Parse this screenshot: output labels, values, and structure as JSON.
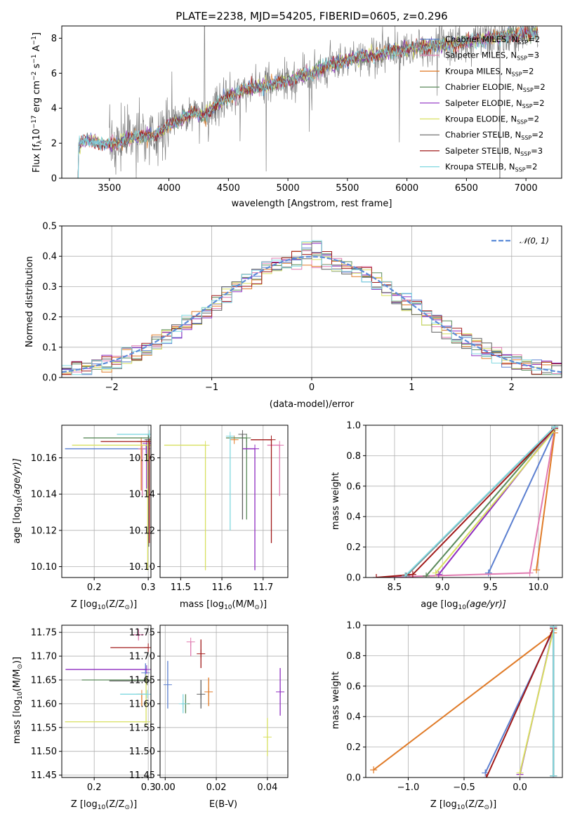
{
  "colors": [
    "#5b7fd0",
    "#e07ab0",
    "#e07b28",
    "#5a8a5a",
    "#8e2cc0",
    "#d8e060",
    "#606060",
    "#a01818",
    "#80d8e0"
  ],
  "chart_data": [
    {
      "id": "spectrum",
      "type": "line",
      "title": "PLATE=2238, MJD=54205, FIBERID=0605, z=0.296",
      "xlabel": "wavelength [Angstrom, rest frame]",
      "ylabel_main": "Flux [f",
      "ylabel_sub": "λ",
      "ylabel_rest": "10",
      "ylabel_sup1": "−17",
      "ylabel_mid": " erg cm",
      "ylabel_sup2": "−2",
      "ylabel_mid2": " s",
      "ylabel_sup3": "−1",
      "ylabel_mid3": " A",
      "ylabel_sup4": "−1",
      "ylabel_end": "]",
      "xlim": [
        3100,
        7300
      ],
      "ylim": [
        0,
        8.7
      ],
      "xticks": [
        3500,
        4000,
        4500,
        5000,
        5500,
        6000,
        6500,
        7000
      ],
      "yticks": [
        0,
        2,
        4,
        6,
        8
      ],
      "observed_color": "#808080",
      "model_x": [
        3200,
        3250,
        3300,
        3400,
        3500,
        3600,
        3700,
        3800,
        3900,
        4000,
        4100,
        4200,
        4300,
        4400,
        4500,
        4600,
        4700,
        4800,
        4900,
        5000,
        5100,
        5200,
        5300,
        5400,
        5500,
        5600,
        5700,
        5800,
        5900,
        6000,
        6100,
        6200,
        6300,
        6400,
        6500,
        6600,
        6700,
        6800,
        6900,
        7000,
        7100
      ],
      "model_y": [
        0.0,
        2.0,
        2.2,
        2.0,
        1.9,
        2.1,
        2.3,
        2.4,
        2.5,
        3.0,
        3.4,
        3.7,
        3.6,
        4.2,
        4.6,
        4.9,
        5.2,
        5.3,
        5.4,
        5.6,
        5.8,
        6.0,
        6.3,
        6.6,
        6.7,
        6.9,
        7.0,
        7.1,
        7.3,
        7.4,
        7.5,
        7.6,
        7.6,
        7.7,
        7.8,
        7.9,
        8.0,
        8.1,
        8.2,
        8.2,
        8.3
      ],
      "legend": [
        {
          "pre": "Chabrier MILES, N",
          "sub": "SSP",
          "post": "=2"
        },
        {
          "pre": "Salpeter MILES, N",
          "sub": "SSP",
          "post": "=3"
        },
        {
          "pre": "Kroupa MILES, N",
          "sub": "SSP",
          "post": "=2"
        },
        {
          "pre": "Chabrier ELODIE, N",
          "sub": "SSP",
          "post": "=2"
        },
        {
          "pre": "Salpeter ELODIE, N",
          "sub": "SSP",
          "post": "=2"
        },
        {
          "pre": "Kroupa ELODIE, N",
          "sub": "SSP",
          "post": "=2"
        },
        {
          "pre": "Chabrier STELIB, N",
          "sub": "SSP",
          "post": "=2"
        },
        {
          "pre": "Salpeter STELIB, N",
          "sub": "SSP",
          "post": "=3"
        },
        {
          "pre": "Kroupa STELIB, N",
          "sub": "SSP",
          "post": "=2"
        }
      ]
    },
    {
      "id": "residuals",
      "type": "histogram",
      "xlabel": "(data-model)/error",
      "ylabel": "Normed distribution",
      "xlim": [
        -2.5,
        2.5
      ],
      "ylim": [
        0,
        0.5
      ],
      "xticks": [
        -2,
        -1,
        0,
        1,
        2
      ],
      "yticks": [
        0.0,
        0.1,
        0.2,
        0.3,
        0.4,
        0.5
      ],
      "legend": "𝒩(0, 1)",
      "gaussian_color": "#5b8bd8",
      "bin_width": 0.1
    },
    {
      "id": "age-vs-Z",
      "type": "scatter",
      "xlabel": "Z [log",
      "xlabel_sub": "10",
      "xlabel_post": "(Z/Z",
      "xlabel_sub2": "⊙",
      "xlabel_end": ")]",
      "ylabel": "age  [log",
      "ylabel_sub": "10",
      "ylabel_post": "(age/yr)]",
      "xlim": [
        0.14,
        0.305
      ],
      "ylim": [
        10.094,
        10.178
      ],
      "xticks": [
        0.2,
        0.3
      ],
      "yticks": [
        10.1,
        10.12,
        10.14,
        10.16
      ],
      "points": [
        {
          "x": 0.296,
          "y": 10.165,
          "xerr": [
            0.15,
            0.0
          ],
          "yerr": [
            0.0,
            0.0
          ]
        },
        {
          "x": 0.289,
          "y": 10.165,
          "xerr": [
            0.0,
            0.0
          ],
          "yerr": [
            0.026,
            0.0
          ]
        },
        {
          "x": 0.287,
          "y": 10.169,
          "xerr": [
            0.0,
            0.0
          ],
          "yerr": [
            0.027,
            0.0
          ]
        },
        {
          "x": 0.3,
          "y": 10.171,
          "xerr": [
            0.12,
            0.0
          ],
          "yerr": [
            0.0,
            0.0
          ]
        },
        {
          "x": 0.297,
          "y": 10.168,
          "xerr": [
            0.0,
            0.0
          ],
          "yerr": [
            0.025,
            0.0
          ]
        },
        {
          "x": 0.299,
          "y": 10.167,
          "xerr": [
            0.14,
            0.0
          ],
          "yerr": [
            0.069,
            0.0
          ]
        },
        {
          "x": 0.301,
          "y": 10.17,
          "xerr": [
            0.0,
            0.0
          ],
          "yerr": [
            0.059,
            0.0
          ]
        },
        {
          "x": 0.302,
          "y": 10.169,
          "xerr": [
            0.09,
            0.0
          ],
          "yerr": [
            0.056,
            0.0
          ]
        },
        {
          "x": 0.302,
          "y": 10.173,
          "xerr": [
            0.06,
            0.0
          ],
          "yerr": [
            0.0,
            0.0
          ]
        }
      ]
    },
    {
      "id": "age-vs-mass",
      "type": "scatter",
      "xlabel": "mass [log",
      "xlabel_sub": "10",
      "xlabel_post": "(M/M",
      "xlabel_sub2": "⊙",
      "xlabel_end": ")]",
      "xlim": [
        11.45,
        11.76
      ],
      "ylim": [
        10.094,
        10.178
      ],
      "xticks": [
        11.5,
        11.6,
        11.7
      ],
      "yticks": [
        10.1,
        10.12,
        10.14,
        10.16
      ],
      "points": [
        {
          "x": 11.66,
          "y": 10.165,
          "xerr": [
            0.0,
            0.0
          ],
          "yerr": [
            0.0,
            0.0
          ]
        },
        {
          "x": 11.74,
          "y": 10.167,
          "xerr": [
            0.03,
            0.0
          ],
          "yerr": [
            0.028,
            0.0
          ]
        },
        {
          "x": 11.63,
          "y": 10.17,
          "xerr": [
            0.0,
            0.0
          ],
          "yerr": [
            0.0,
            0.0
          ]
        },
        {
          "x": 11.66,
          "y": 10.171,
          "xerr": [
            0.05,
            0.0
          ],
          "yerr": [
            0.045,
            0.0
          ]
        },
        {
          "x": 11.68,
          "y": 10.165,
          "xerr": [
            0.03,
            0.0
          ],
          "yerr": [
            0.067,
            0.0
          ]
        },
        {
          "x": 11.56,
          "y": 10.167,
          "xerr": [
            0.1,
            0.0
          ],
          "yerr": [
            0.069,
            0.0
          ]
        },
        {
          "x": 11.65,
          "y": 10.173,
          "xerr": [
            0.0,
            0.0
          ],
          "yerr": [
            0.047,
            0.0
          ]
        },
        {
          "x": 11.72,
          "y": 10.17,
          "xerr": [
            0.05,
            0.0
          ],
          "yerr": [
            0.057,
            0.0
          ]
        },
        {
          "x": 11.62,
          "y": 10.172,
          "xerr": [
            0.0,
            0.0
          ],
          "yerr": [
            0.052,
            0.0
          ]
        }
      ]
    },
    {
      "id": "massweight-vs-age",
      "type": "line",
      "xlabel": "age  [log",
      "xlabel_sub": "10",
      "xlabel_post": "(age/yr)]",
      "ylabel": "mass weight",
      "xlim": [
        8.2,
        10.25
      ],
      "ylim": [
        0,
        1
      ],
      "xticks": [
        8.5,
        9.0,
        9.5,
        10.0
      ],
      "yticks": [
        0.0,
        0.2,
        0.4,
        0.6,
        0.8,
        1.0
      ],
      "series": [
        {
          "x": [
            9.48,
            10.17
          ],
          "y": [
            0.03,
            0.97
          ]
        },
        {
          "x": [
            8.31,
            9.91,
            10.17
          ],
          "y": [
            0.0,
            0.03,
            0.97
          ]
        },
        {
          "x": [
            9.98,
            10.17
          ],
          "y": [
            0.05,
            0.95
          ]
        },
        {
          "x": [
            8.83,
            10.17
          ],
          "y": [
            0.01,
            0.99
          ]
        },
        {
          "x": [
            8.96,
            10.17
          ],
          "y": [
            0.02,
            0.98
          ]
        },
        {
          "x": [
            8.93,
            10.17
          ],
          "y": [
            0.03,
            0.97
          ]
        },
        {
          "x": [
            8.62,
            10.17
          ],
          "y": [
            0.01,
            0.99
          ]
        },
        {
          "x": [
            8.31,
            8.69,
            10.17
          ],
          "y": [
            0.0,
            0.02,
            0.98
          ]
        },
        {
          "x": [
            8.61,
            10.17
          ],
          "y": [
            0.01,
            0.99
          ]
        }
      ]
    },
    {
      "id": "mass-vs-Z",
      "type": "scatter",
      "xlabel": "Z [log",
      "xlabel_sub": "10",
      "xlabel_post": "(Z/Z",
      "xlabel_sub2": "⊙",
      "xlabel_end": ")]",
      "ylabel": "mass [log",
      "ylabel_sub": "10",
      "ylabel_post": "(M/M",
      "ylabel_sub2": "⊙",
      "ylabel_end": ")]",
      "xlim": [
        0.14,
        0.305
      ],
      "ylim": [
        11.445,
        11.765
      ],
      "xticks": [
        0.2,
        0.3
      ],
      "yticks": [
        11.45,
        11.5,
        11.55,
        11.6,
        11.65,
        11.7,
        11.75
      ],
      "points": [
        {
          "x": 0.295,
          "y": 11.665,
          "xerr": [
            0.0,
            0.0
          ],
          "yerr": [
            0.02,
            0.02
          ]
        },
        {
          "x": 0.282,
          "y": 11.745,
          "xerr": [
            0.01,
            0.01
          ],
          "yerr": [
            0.012,
            0.012
          ]
        },
        {
          "x": 0.288,
          "y": 11.62,
          "xerr": [
            0.01,
            0.0
          ],
          "yerr": [
            0.025,
            0.0
          ]
        },
        {
          "x": 0.297,
          "y": 11.65,
          "xerr": [
            0.12,
            0.0
          ],
          "yerr": [
            0.0,
            0.0
          ]
        },
        {
          "x": 0.297,
          "y": 11.672,
          "xerr": [
            0.15,
            0.0
          ],
          "yerr": [
            0.0,
            0.0
          ]
        },
        {
          "x": 0.296,
          "y": 11.562,
          "xerr": [
            0.15,
            0.0
          ],
          "yerr": [
            0.0,
            0.1
          ]
        },
        {
          "x": 0.298,
          "y": 11.648,
          "xerr": [
            0.07,
            0.0
          ],
          "yerr": [
            0.0,
            0.0
          ]
        },
        {
          "x": 0.3,
          "y": 11.718,
          "xerr": [
            0.07,
            0.0
          ],
          "yerr": [
            0.0,
            0.0
          ]
        },
        {
          "x": 0.298,
          "y": 11.62,
          "xerr": [
            0.05,
            0.0
          ],
          "yerr": [
            0.0,
            0.0
          ]
        }
      ]
    },
    {
      "id": "mass-vs-EBV",
      "type": "scatter",
      "xlabel": "E(B-V)",
      "xlim": [
        -0.002,
        0.048
      ],
      "ylim": [
        11.445,
        11.765
      ],
      "xticks": [
        0.0,
        0.02,
        0.04
      ],
      "yticks": [
        11.45,
        11.5,
        11.55,
        11.6,
        11.65,
        11.7,
        11.75
      ],
      "points": [
        {
          "x": 0.001,
          "y": 11.64,
          "xerr": [
            0.0,
            0.0
          ],
          "yerr": [
            0.05,
            0.05
          ]
        },
        {
          "x": 0.01,
          "y": 11.73,
          "xerr": [
            0.0,
            0.0
          ],
          "yerr": [
            0.03,
            0.0
          ]
        },
        {
          "x": 0.017,
          "y": 11.625,
          "xerr": [
            0.0,
            0.0
          ],
          "yerr": [
            0.03,
            0.03
          ]
        },
        {
          "x": 0.008,
          "y": 11.6,
          "xerr": [
            0.0,
            0.0
          ],
          "yerr": [
            0.02,
            0.02
          ]
        },
        {
          "x": 0.045,
          "y": 11.625,
          "xerr": [
            0.0,
            0.0
          ],
          "yerr": [
            0.05,
            0.05
          ]
        },
        {
          "x": 0.04,
          "y": 11.53,
          "xerr": [
            0.0,
            0.0
          ],
          "yerr": [
            0.04,
            0.04
          ]
        },
        {
          "x": 0.014,
          "y": 11.62,
          "xerr": [
            0.0,
            0.0
          ],
          "yerr": [
            0.03,
            0.03
          ]
        },
        {
          "x": 0.014,
          "y": 11.705,
          "xerr": [
            0.0,
            0.0
          ],
          "yerr": [
            0.03,
            0.03
          ]
        },
        {
          "x": 0.007,
          "y": 11.6,
          "xerr": [
            0.0,
            0.0
          ],
          "yerr": [
            0.02,
            0.02
          ]
        }
      ]
    },
    {
      "id": "massweight-vs-Z",
      "type": "line",
      "xlabel": "Z [log",
      "xlabel_sub": "10",
      "xlabel_post": "(Z/Z",
      "xlabel_sub2": "⊙",
      "xlabel_end": ")]",
      "ylabel": "mass weight",
      "xlim": [
        -1.38,
        0.38
      ],
      "ylim": [
        0,
        1
      ],
      "xticks": [
        -1.0,
        -0.5,
        0.0
      ],
      "yticks": [
        0.0,
        0.2,
        0.4,
        0.6,
        0.8,
        1.0
      ],
      "series": [
        {
          "x": [
            -0.31,
            0.3
          ],
          "y": [
            0.03,
            0.97
          ]
        },
        {
          "x": [
            0.3,
            0.3
          ],
          "y": [
            0.0,
            0.97
          ]
        },
        {
          "x": [
            -1.31,
            0.3
          ],
          "y": [
            0.05,
            0.95
          ]
        },
        {
          "x": [
            0.3,
            0.3
          ],
          "y": [
            0.01,
            0.99
          ]
        },
        {
          "x": [
            0.0,
            0.3
          ],
          "y": [
            0.02,
            0.98
          ]
        },
        {
          "x": [
            0.0,
            0.3
          ],
          "y": [
            0.03,
            0.97
          ]
        },
        {
          "x": [
            0.3,
            0.3
          ],
          "y": [
            0.01,
            0.99
          ]
        },
        {
          "x": [
            -0.3,
            0.3
          ],
          "y": [
            0.0,
            0.98
          ]
        },
        {
          "x": [
            0.3,
            0.3
          ],
          "y": [
            0.01,
            0.99
          ]
        }
      ]
    }
  ]
}
